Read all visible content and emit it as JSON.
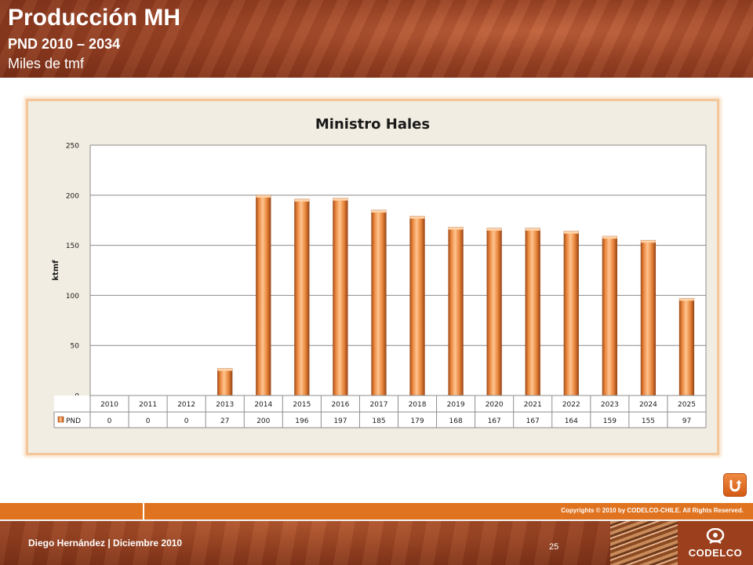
{
  "slide": {
    "title": "Producción MH",
    "subtitle": "PND 2010 – 2034",
    "units": "Miles de tmf"
  },
  "footer": {
    "copyright": "Copyrights © 2010 by CODELCO-CHILE.  All Rights Reserved.",
    "author": "Diego Hernández | Diciembre 2010",
    "page_number": "25",
    "logo_text": "CODELCO"
  },
  "icons": {
    "nav": "u-turn-arrow-icon",
    "logo": "codelco-logo-icon"
  },
  "chart_data": {
    "type": "bar",
    "title": "Ministro Hales",
    "ylabel": "ktmf",
    "xlabel": "",
    "categories": [
      "2010",
      "2011",
      "2012",
      "2013",
      "2014",
      "2015",
      "2016",
      "2017",
      "2018",
      "2019",
      "2020",
      "2021",
      "2022",
      "2023",
      "2024",
      "2025"
    ],
    "series": [
      {
        "name": "PND",
        "values": [
          0,
          0,
          0,
          27,
          200,
          196,
          197,
          185,
          179,
          168,
          167,
          167,
          164,
          159,
          155,
          97
        ]
      }
    ],
    "ylim": [
      0,
      250
    ],
    "yticks": [
      0,
      50,
      100,
      150,
      200,
      250
    ],
    "grid": true,
    "data_table": true,
    "bar_color": "#e8843a"
  }
}
